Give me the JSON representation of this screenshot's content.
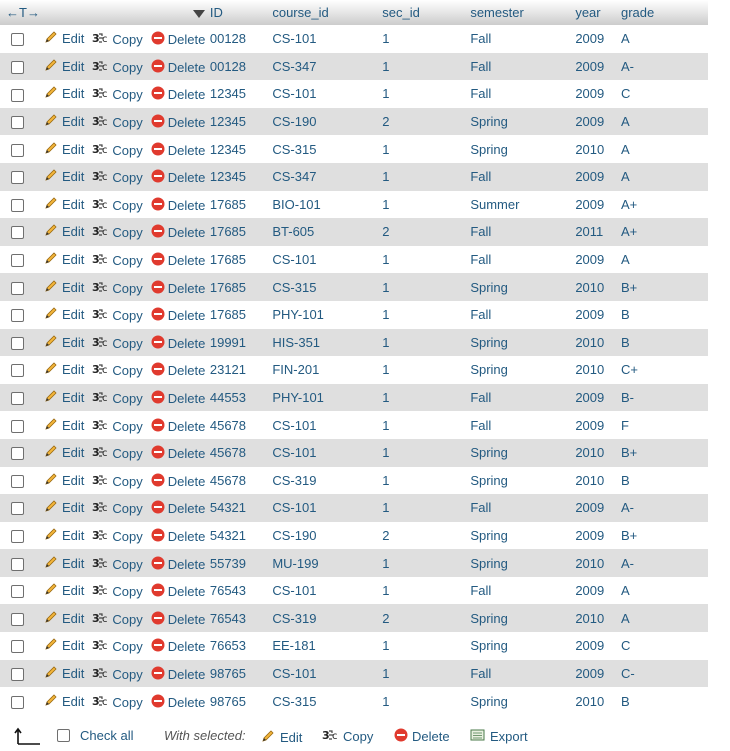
{
  "header": {
    "arrows": "←T→",
    "columns": [
      "ID",
      "course_id",
      "sec_id",
      "semester",
      "year",
      "grade"
    ]
  },
  "row_actions": {
    "edit": "Edit",
    "copy": "Copy",
    "delete": "Delete"
  },
  "rows": [
    [
      "00128",
      "CS-101",
      "1",
      "Fall",
      "2009",
      "A"
    ],
    [
      "00128",
      "CS-347",
      "1",
      "Fall",
      "2009",
      "A-"
    ],
    [
      "12345",
      "CS-101",
      "1",
      "Fall",
      "2009",
      "C"
    ],
    [
      "12345",
      "CS-190",
      "2",
      "Spring",
      "2009",
      "A"
    ],
    [
      "12345",
      "CS-315",
      "1",
      "Spring",
      "2010",
      "A"
    ],
    [
      "12345",
      "CS-347",
      "1",
      "Fall",
      "2009",
      "A"
    ],
    [
      "17685",
      "BIO-101",
      "1",
      "Summer",
      "2009",
      "A+"
    ],
    [
      "17685",
      "BT-605",
      "2",
      "Fall",
      "2011",
      "A+"
    ],
    [
      "17685",
      "CS-101",
      "1",
      "Fall",
      "2009",
      "A"
    ],
    [
      "17685",
      "CS-315",
      "1",
      "Spring",
      "2010",
      "B+"
    ],
    [
      "17685",
      "PHY-101",
      "1",
      "Fall",
      "2009",
      "B"
    ],
    [
      "19991",
      "HIS-351",
      "1",
      "Spring",
      "2010",
      "B"
    ],
    [
      "23121",
      "FIN-201",
      "1",
      "Spring",
      "2010",
      "C+"
    ],
    [
      "44553",
      "PHY-101",
      "1",
      "Fall",
      "2009",
      "B-"
    ],
    [
      "45678",
      "CS-101",
      "1",
      "Fall",
      "2009",
      "F"
    ],
    [
      "45678",
      "CS-101",
      "1",
      "Spring",
      "2010",
      "B+"
    ],
    [
      "45678",
      "CS-319",
      "1",
      "Spring",
      "2010",
      "B"
    ],
    [
      "54321",
      "CS-101",
      "1",
      "Fall",
      "2009",
      "A-"
    ],
    [
      "54321",
      "CS-190",
      "2",
      "Spring",
      "2009",
      "B+"
    ],
    [
      "55739",
      "MU-199",
      "1",
      "Spring",
      "2010",
      "A-"
    ],
    [
      "76543",
      "CS-101",
      "1",
      "Fall",
      "2009",
      "A"
    ],
    [
      "76543",
      "CS-319",
      "2",
      "Spring",
      "2010",
      "A"
    ],
    [
      "76653",
      "EE-181",
      "1",
      "Spring",
      "2009",
      "C"
    ],
    [
      "98765",
      "CS-101",
      "1",
      "Fall",
      "2009",
      "C-"
    ],
    [
      "98765",
      "CS-315",
      "1",
      "Spring",
      "2010",
      "B"
    ]
  ],
  "footer": {
    "check_all": "Check all",
    "with_selected": "With selected:",
    "edit": "Edit",
    "copy": "Copy",
    "delete": "Delete",
    "export": "Export"
  },
  "colors": {
    "link": "#235a81",
    "row_alt": "#dfdfdf",
    "delete_red": "#e03a2e",
    "pencil_gold": "#e8a317"
  }
}
